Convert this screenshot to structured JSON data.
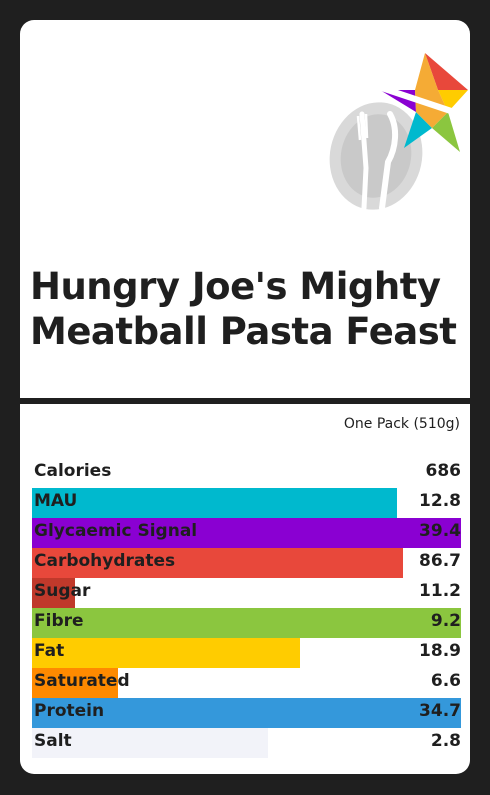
{
  "title": "Hungry Joe's Mighty Meatball Pasta Feast",
  "serving": "One Pack (510g)",
  "logo_icons": [
    "plate-fork-knife-icon",
    "rainbow-star-icon"
  ],
  "colors": {
    "background": "#1f1f1f",
    "card": "#ffffff",
    "text": "#1f1f1f",
    "plate": "#d9d9d9"
  },
  "nutrients": [
    {
      "label": "Calories",
      "value": "686",
      "fill": 0,
      "color": "#ffffff"
    },
    {
      "label": "MAU",
      "value": "12.8",
      "fill": 0.85,
      "color": "#00b9ce"
    },
    {
      "label": "Glycaemic Signal",
      "value": "39.4",
      "fill": 1.0,
      "color": "#8a00d2"
    },
    {
      "label": "Carbohydrates",
      "value": "86.7",
      "fill": 0.865,
      "color": "#e8483b"
    },
    {
      "label": "Sugar",
      "value": "11.2",
      "fill": 0.1,
      "color": "#c0392b"
    },
    {
      "label": "Fibre",
      "value": "9.2",
      "fill": 1.0,
      "color": "#8bc63f"
    },
    {
      "label": "Fat",
      "value": "18.9",
      "fill": 0.625,
      "color": "#ffcc00"
    },
    {
      "label": "Saturated",
      "value": "6.6",
      "fill": 0.2,
      "color": "#ff8a00"
    },
    {
      "label": "Protein",
      "value": "34.7",
      "fill": 1.0,
      "color": "#3498db"
    },
    {
      "label": "Salt",
      "value": "2.8",
      "fill": 0.55,
      "color": "#f2f3f9"
    }
  ]
}
